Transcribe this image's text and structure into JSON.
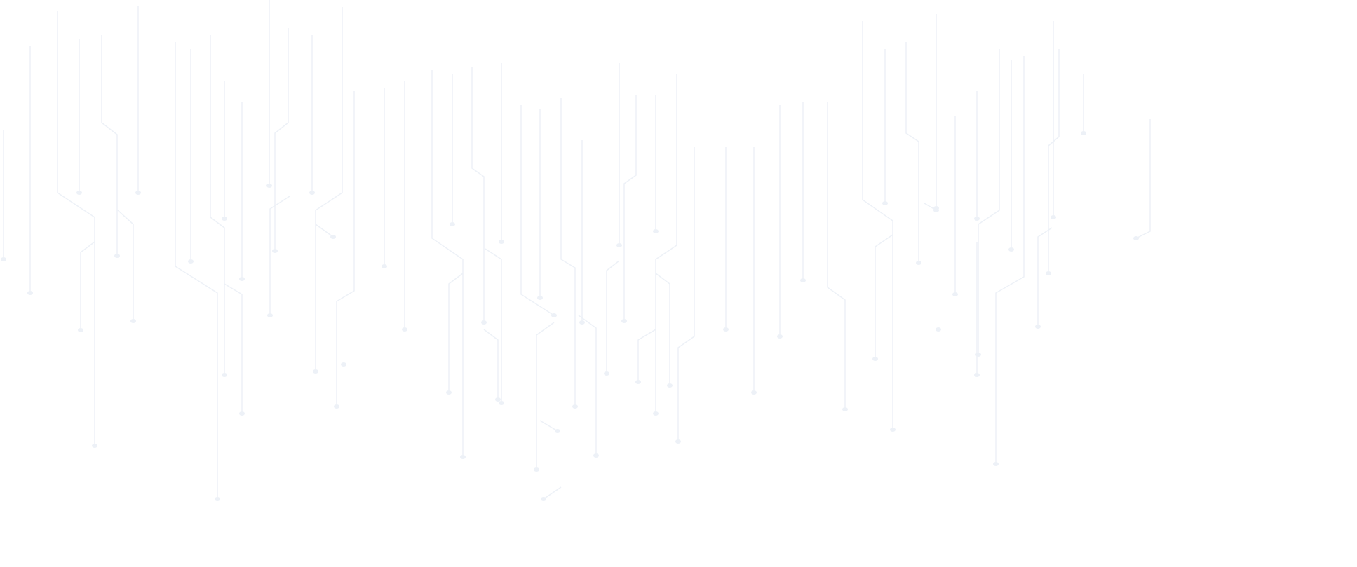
{
  "background": {
    "color": "#ffffff",
    "trace_color": "#edf1f7",
    "pattern": "circuit-traces"
  }
}
